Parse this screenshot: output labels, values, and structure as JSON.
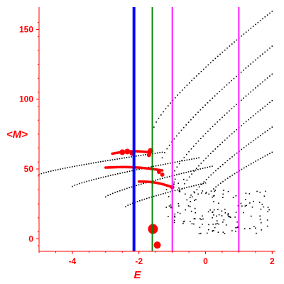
{
  "chart_data": {
    "type": "scatter",
    "xlabel": "E",
    "ylabel": "<M>",
    "xlim": [
      -5,
      2.1
    ],
    "ylim": [
      -9,
      166
    ],
    "xticks": [
      {
        "value": -4,
        "label": "-4"
      },
      {
        "value": -2,
        "label": "-2"
      },
      {
        "value": 0,
        "label": "0"
      },
      {
        "value": 2,
        "label": "2"
      }
    ],
    "yticks": [
      {
        "value": 0,
        "label": "0"
      },
      {
        "value": 50,
        "label": "50"
      },
      {
        "value": 100,
        "label": "100"
      },
      {
        "value": 150,
        "label": "150"
      }
    ],
    "vertical_lines": [
      {
        "x": -2.15,
        "color": "#0000ff",
        "width": "thick"
      },
      {
        "x": -1.6,
        "color": "#008000",
        "width": "thin"
      },
      {
        "x": -1.0,
        "color": "#ff00ff",
        "width": "thin"
      },
      {
        "x": 1.0,
        "color": "#ff00ff",
        "width": "thin"
      }
    ],
    "black_bands": [
      {
        "x_start": -5.0,
        "x_end": -1.3,
        "y_start": 46.0,
        "y_end": 62.0
      },
      {
        "x_start": -4.0,
        "x_end": -0.2,
        "y_start": 37.5,
        "y_end": 58.0
      },
      {
        "x_start": -3.0,
        "x_end": 0.2,
        "y_start": 30.0,
        "y_end": 52.0
      },
      {
        "x_start": -2.4,
        "x_end": 0.0,
        "y_start": 23.0,
        "y_end": 40.0
      },
      {
        "x_start": -1.55,
        "x_end": 2.0,
        "y_start": 80.0,
        "y_end": 163.0
      },
      {
        "x_start": -1.3,
        "x_end": 2.0,
        "y_start": 58.0,
        "y_end": 138.0
      },
      {
        "x_start": -1.0,
        "x_end": 2.0,
        "y_start": 45.0,
        "y_end": 118.0
      },
      {
        "x_start": -0.7,
        "x_end": 2.0,
        "y_start": 36.0,
        "y_end": 99.0
      },
      {
        "x_start": -0.4,
        "x_end": 2.0,
        "y_start": 30.0,
        "y_end": 80.0
      },
      {
        "x_start": 0.1,
        "x_end": 2.0,
        "y_start": 32.0,
        "y_end": 62.0
      }
    ],
    "red_bands": [
      {
        "x_start": -2.8,
        "x_end": -1.7,
        "y_start": 61.0,
        "y_end": 62.0
      },
      {
        "x_start": -3.0,
        "x_end": -1.3,
        "y_start": 51.0,
        "y_end": 49.0
      },
      {
        "x_start": -2.0,
        "x_end": -1.0,
        "y_start": 41.0,
        "y_end": 37.0
      }
    ],
    "red_markers": [
      {
        "x": -2.35,
        "y": 62.5,
        "size": 4
      },
      {
        "x": -2.5,
        "y": 62.0,
        "size": 4
      },
      {
        "x": -2.2,
        "y": 61.5,
        "size": 4
      },
      {
        "x": -1.65,
        "y": 63.0,
        "size": 4
      },
      {
        "x": -1.58,
        "y": 7.0,
        "size": 7
      },
      {
        "x": -1.45,
        "y": -4.5,
        "size": 5
      },
      {
        "x": -1.7,
        "y": 60.0,
        "size": 3
      },
      {
        "x": -1.4,
        "y": 48.0,
        "size": 3
      },
      {
        "x": -1.3,
        "y": 46.0,
        "size": 3
      },
      {
        "x": -1.0,
        "y": 37.0,
        "size": 3
      }
    ]
  }
}
